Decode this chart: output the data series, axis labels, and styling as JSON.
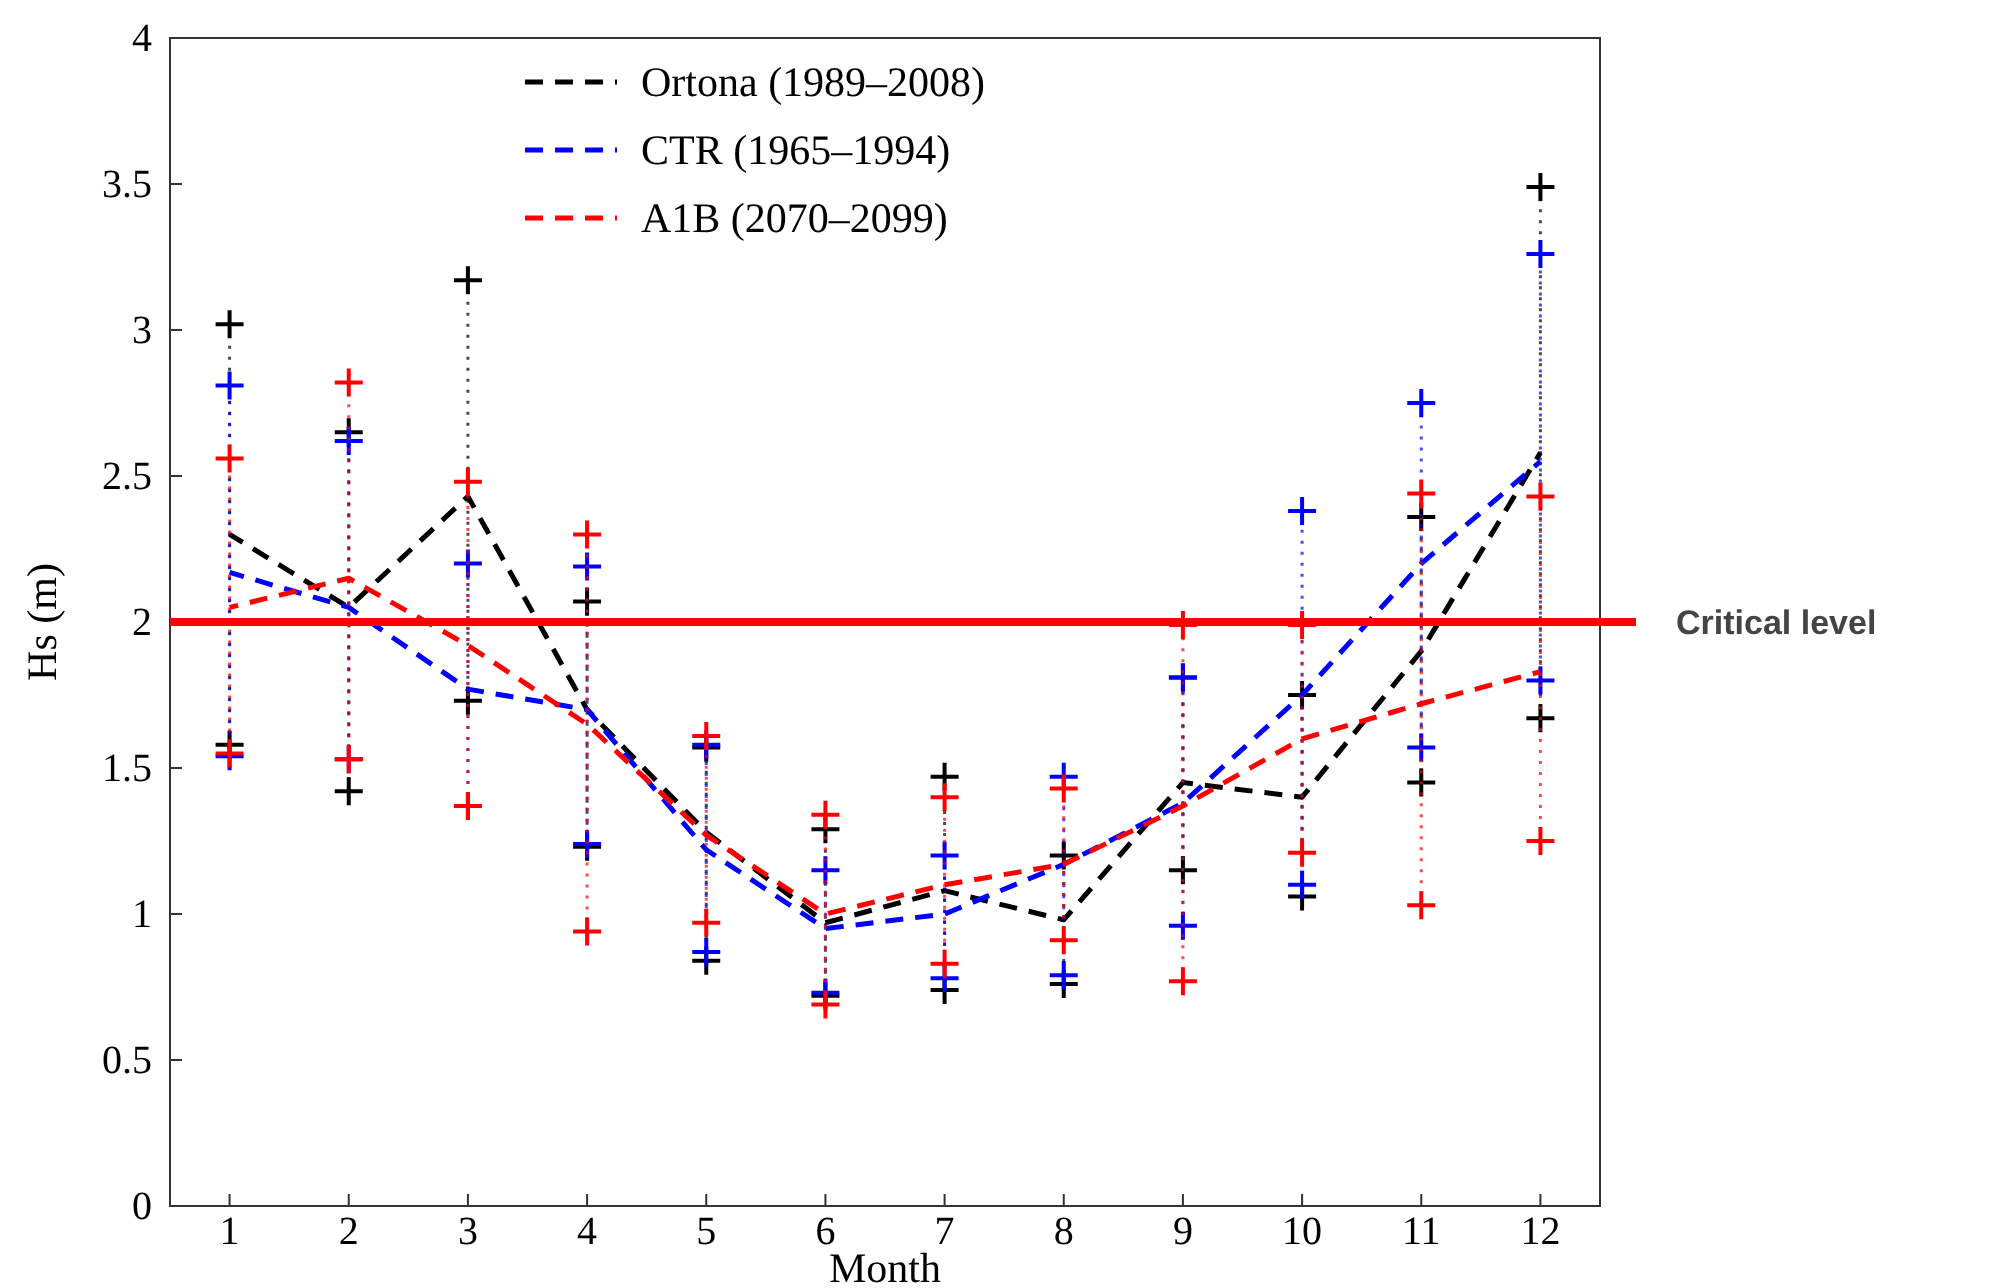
{
  "chart_data": {
    "type": "line",
    "xlabel": "Month",
    "ylabel": "Hs (m)",
    "x": [
      1,
      2,
      3,
      4,
      5,
      6,
      7,
      8,
      9,
      10,
      11,
      12
    ],
    "xlim": [
      0.5,
      12.5
    ],
    "xticks": [
      1,
      2,
      3,
      4,
      5,
      6,
      7,
      8,
      9,
      10,
      11,
      12
    ],
    "ylim": [
      0,
      4
    ],
    "yticks": [
      0,
      0.5,
      1,
      1.5,
      2,
      2.5,
      3,
      3.5,
      4
    ],
    "line_style": "dashed",
    "legend": "top",
    "grid": false,
    "series": [
      {
        "name": "Ortona (1989–2008)",
        "color": "#000000",
        "values": [
          2.3,
          2.05,
          2.43,
          1.7,
          1.28,
          0.97,
          1.08,
          0.98,
          1.45,
          1.4,
          1.9,
          2.58
        ],
        "errors": [
          [
            1.58,
            3.02
          ],
          [
            1.42,
            2.65
          ],
          [
            1.73,
            3.17
          ],
          [
            1.23,
            2.07
          ],
          [
            0.84,
            1.57
          ],
          [
            0.72,
            1.29
          ],
          [
            0.74,
            1.47
          ],
          [
            0.76,
            1.2
          ],
          [
            1.15,
            1.81
          ],
          [
            1.06,
            1.75
          ],
          [
            1.45,
            2.36
          ],
          [
            1.67,
            3.49
          ]
        ]
      },
      {
        "name": "CTR (1965–1994)",
        "color": "#0000ff",
        "values": [
          2.17,
          2.05,
          1.77,
          1.7,
          1.22,
          0.95,
          1.0,
          1.17,
          1.38,
          1.75,
          2.2,
          2.55
        ],
        "errors": [
          [
            1.54,
            2.81
          ],
          [
            1.53,
            2.62
          ],
          [
            1.37,
            2.2
          ],
          [
            1.24,
            2.19
          ],
          [
            0.87,
            1.58
          ],
          [
            0.73,
            1.15
          ],
          [
            0.78,
            1.2
          ],
          [
            0.79,
            1.47
          ],
          [
            0.96,
            1.81
          ],
          [
            1.1,
            2.38
          ],
          [
            1.57,
            2.75
          ],
          [
            1.8,
            3.26
          ]
        ]
      },
      {
        "name": "A1B (2070–2099)",
        "color": "#ff0000",
        "values": [
          2.05,
          2.15,
          1.92,
          1.65,
          1.27,
          1.0,
          1.1,
          1.17,
          1.37,
          1.6,
          1.72,
          1.83
        ],
        "errors": [
          [
            1.55,
            2.56
          ],
          [
            1.53,
            2.82
          ],
          [
            1.37,
            2.48
          ],
          [
            0.94,
            2.3
          ],
          [
            0.97,
            1.61
          ],
          [
            0.69,
            1.34
          ],
          [
            0.83,
            1.4
          ],
          [
            0.91,
            1.43
          ],
          [
            0.77,
            1.99
          ],
          [
            1.21,
            1.99
          ],
          [
            1.03,
            2.44
          ],
          [
            1.25,
            2.43
          ]
        ]
      }
    ],
    "ref_lines": [
      {
        "axis": "y",
        "value": 2,
        "label": "Critical level",
        "color": "#ff0000",
        "line_style": "solid"
      }
    ]
  }
}
